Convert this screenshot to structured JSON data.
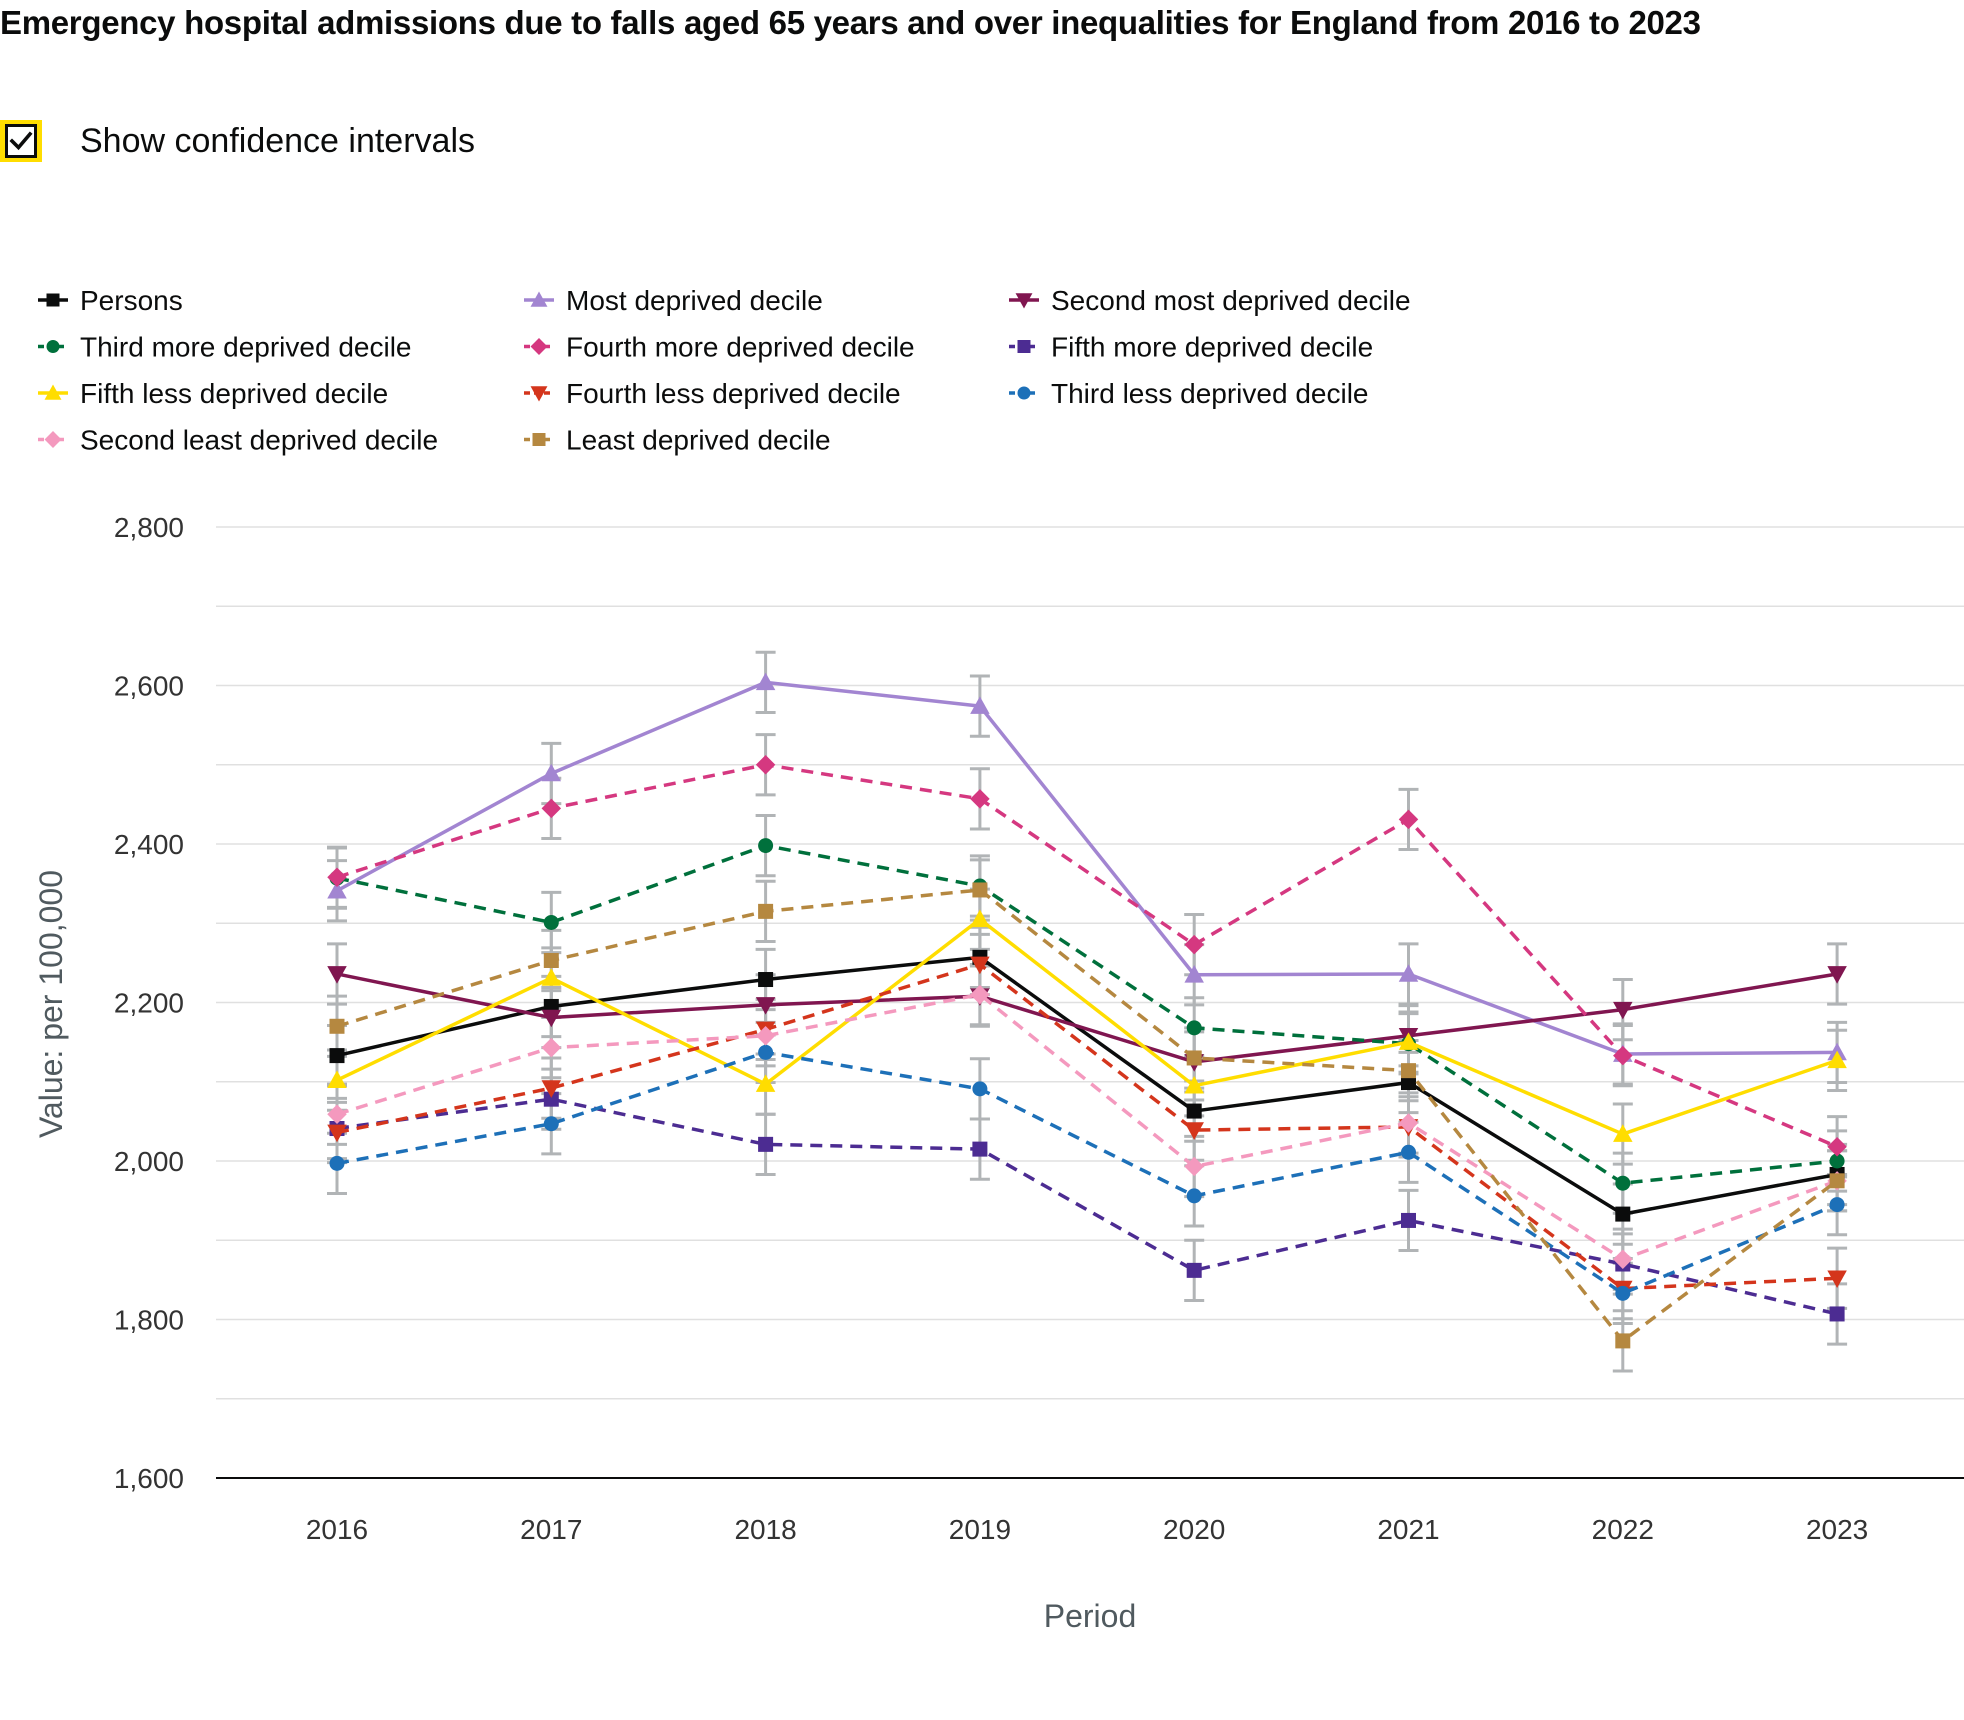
{
  "title": "Emergency hospital admissions due to falls aged 65 years and over inequalities for England from 2016 to 2023",
  "ci_toggle": {
    "label": "Show confidence intervals",
    "checked": true,
    "icon": "checkmark-icon"
  },
  "colors": {
    "grid": "#e0e0e0",
    "axis": "#0b0c0c",
    "ci": "#b1b4b6",
    "focus": "#ffdd00"
  },
  "chart_data": {
    "type": "line",
    "categories": [
      "2016",
      "2017",
      "2018",
      "2019",
      "2020",
      "2021",
      "2022",
      "2023"
    ],
    "xlabel": "Period",
    "ylabel": "Value: per 100,000",
    "ylim": [
      1600,
      2800
    ],
    "yticks": [
      "1,600",
      "1,800",
      "2,000",
      "2,200",
      "2,400",
      "2,600",
      "2,800"
    ],
    "ytick_values": [
      1600,
      1800,
      2000,
      2200,
      2400,
      2600,
      2800
    ],
    "grid": true,
    "legend_position": "top",
    "ci_half_width": 38,
    "series": [
      {
        "name": "Persons",
        "color": "#0b0c0c",
        "dashed": false,
        "marker": "square",
        "values": [
          2133,
          2195,
          2229,
          2257,
          2063,
          2099,
          1933,
          1983
        ]
      },
      {
        "name": "Most deprived decile",
        "color": "#a285d1",
        "dashed": false,
        "marker": "triangle-up",
        "values": [
          2341,
          2489,
          2604,
          2574,
          2235,
          2236,
          2135,
          2137
        ]
      },
      {
        "name": "Second most deprived decile",
        "color": "#801650",
        "dashed": false,
        "marker": "triangle-down",
        "values": [
          2236,
          2181,
          2197,
          2208,
          2125,
          2158,
          2191,
          2236
        ]
      },
      {
        "name": "Third more deprived decile",
        "color": "#00703c",
        "dashed": true,
        "marker": "circle",
        "values": [
          2357,
          2301,
          2398,
          2347,
          2168,
          2148,
          1972,
          2000
        ]
      },
      {
        "name": "Fourth more deprived decile",
        "color": "#d53880",
        "dashed": true,
        "marker": "diamond",
        "values": [
          2358,
          2445,
          2500,
          2457,
          2273,
          2431,
          2133,
          2018
        ]
      },
      {
        "name": "Fifth more deprived decile",
        "color": "#4c2c92",
        "dashed": true,
        "marker": "square",
        "values": [
          2041,
          2078,
          2021,
          2015,
          1862,
          1925,
          1870,
          1807
        ]
      },
      {
        "name": "Fifth less deprived decile",
        "color": "#ffdd00",
        "dashed": false,
        "marker": "triangle-up",
        "values": [
          2102,
          2231,
          2097,
          2305,
          2095,
          2150,
          2034,
          2127
        ]
      },
      {
        "name": "Fourth less deprived decile",
        "color": "#d4351c",
        "dashed": true,
        "marker": "triangle-down",
        "values": [
          2036,
          2092,
          2166,
          2248,
          2039,
          2043,
          1839,
          1852
        ]
      },
      {
        "name": "Third less deprived decile",
        "color": "#1d70b8",
        "dashed": true,
        "marker": "circle",
        "values": [
          1997,
          2047,
          2137,
          2091,
          1956,
          2011,
          1833,
          1945
        ]
      },
      {
        "name": "Second least deprived decile",
        "color": "#f499be",
        "dashed": true,
        "marker": "diamond",
        "values": [
          2059,
          2143,
          2158,
          2210,
          1993,
          2048,
          1876,
          1975
        ]
      },
      {
        "name": "Least deprived decile",
        "color": "#b58840",
        "dashed": true,
        "marker": "square",
        "values": [
          2170,
          2253,
          2315,
          2342,
          2130,
          2114,
          1773,
          1975
        ]
      }
    ]
  }
}
